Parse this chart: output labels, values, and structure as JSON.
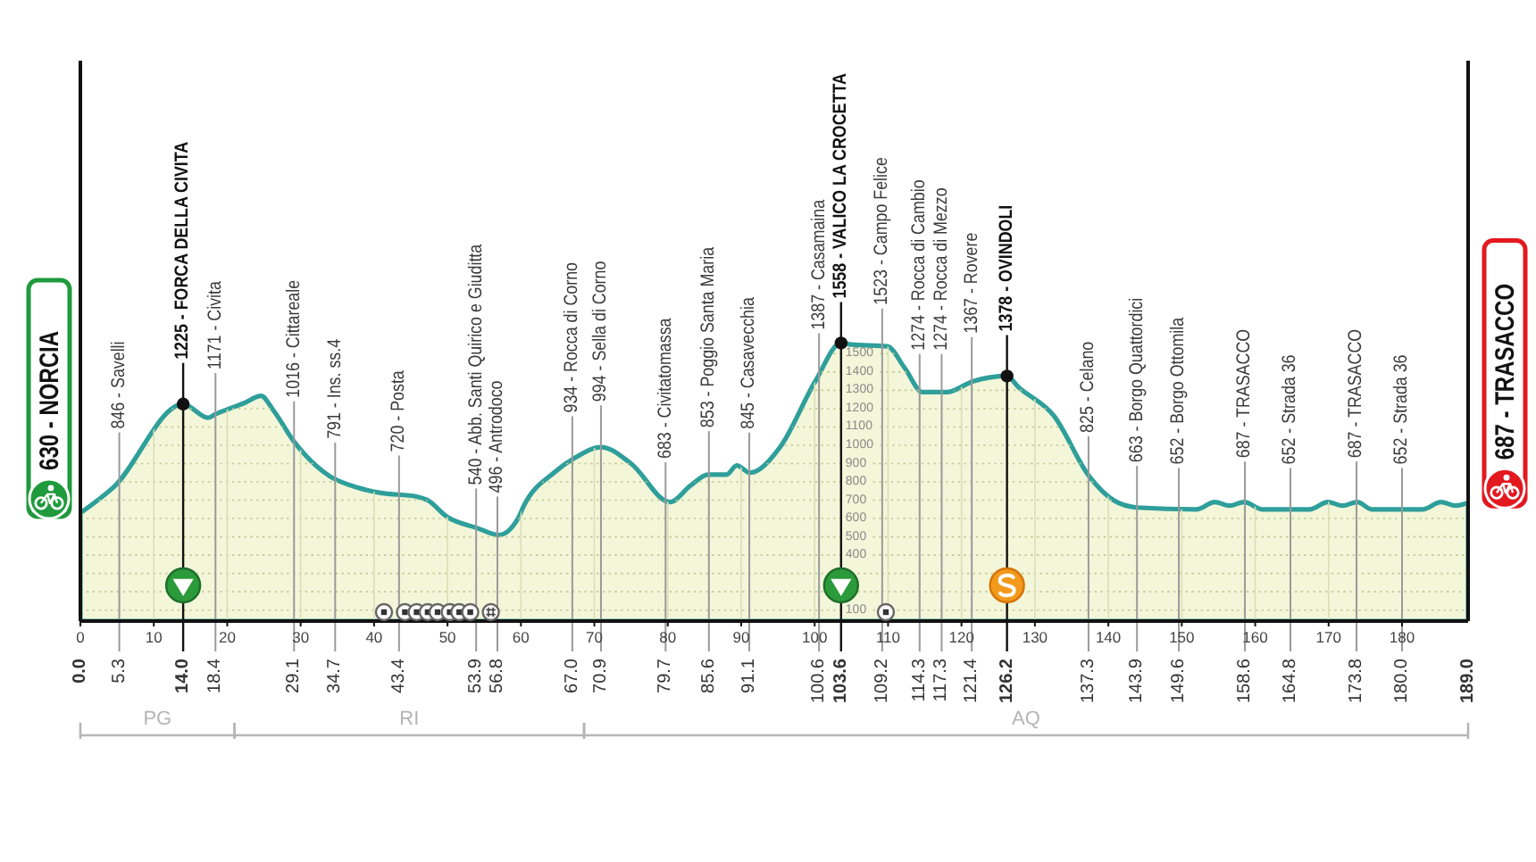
{
  "chart_data": {
    "type": "area",
    "xlim": [
      0,
      189
    ],
    "xticks": [
      0,
      10,
      20,
      30,
      40,
      50,
      60,
      70,
      80,
      90,
      100,
      110,
      120,
      130,
      140,
      150,
      160,
      170,
      180
    ],
    "x2lim": [
      0,
      189
    ],
    "x2ticks": [
      {
        "value": 0,
        "label": "0.0"
      },
      5.3,
      {
        "value": 14,
        "label": "14.0"
      },
      18.4,
      29.1,
      34.7,
      43.4,
      53.9,
      56.8,
      {
        "value": 67,
        "label": "67.0"
      },
      70.9,
      79.7,
      85.6,
      91.1,
      100.6,
      103.6,
      109.2,
      114.3,
      117.3,
      121.4,
      126.2,
      137.3,
      143.9,
      149.6,
      158.6,
      164.8,
      173.8,
      {
        "value": 180,
        "label": "180.0"
      },
      {
        "value": 189,
        "label": "189.0"
      }
    ],
    "ylim": [
      40,
      3100
    ],
    "yticks": [
      100,
      {
        "value": 200,
        "label": null
      },
      {
        "value": 300,
        "label": null
      },
      400,
      500,
      600,
      700,
      800,
      900,
      1000,
      1100,
      1200,
      1300,
      1400,
      1500
    ],
    "grid": true,
    "series": [
      {
        "color": "#2e9f9b",
        "x": [
          0,
          4.5,
          14,
          17.4,
          18.4,
          20.3,
          22.3,
          24.6,
          26.3,
          29.1,
          34,
          37.7,
          40.9,
          45.8,
          47.3,
          49.9,
          53.9,
          57,
          59.6,
          60.4,
          64.5,
          67.3,
          70.9,
          75,
          80.3,
          83.1,
          85.5,
          88,
          89.4,
          91.2,
          95.3,
          100.1,
          103.6,
          105,
          109.9,
          112.3,
          114.7,
          118,
          121.6,
          126.2,
          127.7,
          132.6,
          137.4,
          140.7,
          143.9,
          152,
          154.5,
          156.5,
          158.5,
          161,
          167.4,
          169.9,
          171.9,
          173.9,
          175.9,
          182.8,
          185.3,
          187.3,
          189
        ],
        "values": [
          630,
          770,
          1225,
          1150,
          1170,
          1200,
          1230,
          1270,
          1190,
          1020,
          830,
          770,
          740,
          720,
          700,
          610,
          550,
          510,
          600,
          670,
          850,
          930,
          990,
          900,
          690,
          780,
          840,
          840,
          890,
          850,
          990,
          1350,
          1558,
          1550,
          1540,
          1420,
          1290,
          1290,
          1350,
          1378,
          1320,
          1160,
          830,
          700,
          660,
          650,
          690,
          670,
          690,
          650,
          650,
          690,
          670,
          690,
          650,
          650,
          690,
          670,
          687
        ]
      },
      {
        "type": "scatter",
        "marker": "circle",
        "color": "#111111",
        "x": [
          14,
          103.6,
          126.2
        ],
        "values": [
          1225,
          1558,
          1378
        ]
      }
    ],
    "annotations": [
      {
        "text": "630 - NORCIA",
        "x": 0,
        "y": 630
      },
      {
        "text": "846 - Savelli",
        "x": 5.3,
        "y": 846
      },
      {
        "text": "1225 - FORCA DELLA CIVITA",
        "x": 14,
        "y": 1225
      },
      {
        "text": "1171 - Civita",
        "x": 18.4,
        "y": 1171
      },
      {
        "text": "1016 - Cittareale",
        "x": 29.1,
        "y": 1016
      },
      {
        "text": "791 - Ins. ss.4",
        "x": 34.7,
        "y": 791
      },
      {
        "text": "720 - Posta",
        "x": 43.4,
        "y": 720
      },
      {
        "text": "540 - Abb. Santi Quirico e Giuditta",
        "x": 53.9,
        "y": 540
      },
      {
        "text": "496 - Antrodoco",
        "x": 56.8,
        "y": 496
      },
      {
        "text": "934 - Rocca di Corno",
        "x": 67,
        "y": 934
      },
      {
        "text": "994 - Sella di Corno",
        "x": 70.9,
        "y": 994
      },
      {
        "text": "683 - Civitatomassa",
        "x": 79.7,
        "y": 683
      },
      {
        "text": "853 - Poggio Santa Maria",
        "x": 85.6,
        "y": 853
      },
      {
        "text": "845 - Casavecchia",
        "x": 91.1,
        "y": 845
      },
      {
        "text": "1387 - Casamaina",
        "x": 100.6,
        "y": 1387
      },
      {
        "text": "1558 - VALICO LA CROCETTA",
        "x": 103.6,
        "y": 1558
      },
      {
        "text": "1523 - Campo Felice",
        "x": 109.2,
        "y": 1523
      },
      {
        "text": "1274 - Rocca di Cambio",
        "x": 114.3,
        "y": 1274
      },
      {
        "text": "1274 - Rocca di Mezzo",
        "x": 117.3,
        "y": 1274
      },
      {
        "text": "1367 - Rovere",
        "x": 121.4,
        "y": 1367
      },
      {
        "text": "1378 - OVINDOLI",
        "x": 126.2,
        "y": 1378
      },
      {
        "text": "825 - Celano",
        "x": 137.3,
        "y": 825
      },
      {
        "text": "663 - Borgo Quattordici",
        "x": 143.9,
        "y": 663
      },
      {
        "text": "652 - Borgo Ottomila",
        "x": 149.6,
        "y": 652
      },
      {
        "text": "687 - TRASACCO",
        "x": 158.6,
        "y": 687
      },
      {
        "text": "652 - Strada 36",
        "x": 164.8,
        "y": 652
      },
      {
        "text": "687 - TRASACCO",
        "x": 173.8,
        "y": 687
      },
      {
        "text": "652 - Strada 36",
        "x": 180,
        "y": 652
      },
      {
        "text": "687 - TRASACCO",
        "x": 189,
        "y": 687
      },
      "PG",
      "RI",
      "AQ"
    ]
  }
}
